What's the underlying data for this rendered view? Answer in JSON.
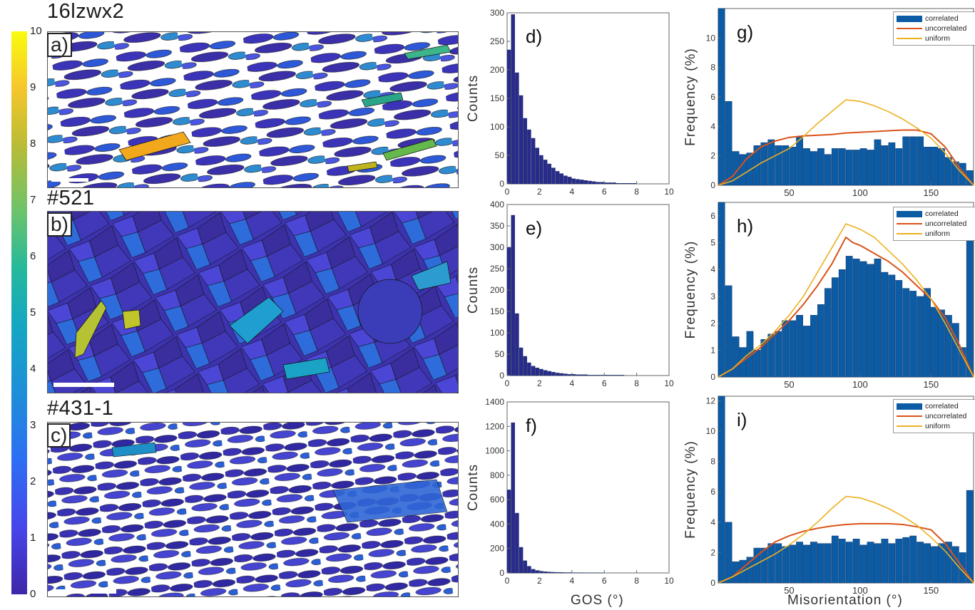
{
  "colorbar": {
    "ticks": [
      "0",
      "1",
      "2",
      "3",
      "4",
      "5",
      "6",
      "7",
      "8",
      "9",
      "10"
    ]
  },
  "maps": [
    {
      "sample": "16lzwx2",
      "label": "a)"
    },
    {
      "sample": "#521",
      "label": "b)"
    },
    {
      "sample": "#431-1",
      "label": "c)"
    }
  ],
  "colors": {
    "bars_gos": "#2a2a8c",
    "bars_mis": "#0c5ba5",
    "uncorrelated": "#d95319",
    "uniform": "#edb120",
    "map_dark": "#3b2fa8",
    "map_light": "#4a7ff0"
  },
  "gos_axis_label": "GOS (°)",
  "gos_ylabel": "Counts",
  "mis_axis_label": "Misorientation (°)",
  "mis_ylabel": "Frequency (%)",
  "legend": {
    "correlated": "correlated",
    "uncorrelated": "uncorrelated",
    "uniform": "uniform"
  },
  "chart_data": [
    {
      "id": "d",
      "label": "d)",
      "type": "bar",
      "x_centers": [
        0.125,
        0.375,
        0.625,
        0.875,
        1.125,
        1.375,
        1.625,
        1.875,
        2.125,
        2.375,
        2.625,
        2.875,
        3.125,
        3.375,
        3.625,
        3.875,
        4.125,
        4.375,
        4.625,
        4.875,
        5.125,
        5.375,
        5.625,
        5.875,
        6.125,
        6.375,
        6.625,
        6.875,
        7.125,
        7.375,
        7.625,
        7.875
      ],
      "values": [
        235,
        297,
        195,
        155,
        115,
        95,
        80,
        63,
        50,
        42,
        35,
        28,
        22,
        18,
        14,
        12,
        9,
        8,
        7,
        6,
        5,
        4,
        3,
        3,
        2,
        2,
        2,
        1,
        1,
        1,
        1,
        1
      ],
      "xlim": [
        0,
        10
      ],
      "ylim": [
        0,
        300
      ],
      "xticks": [
        "0",
        "2",
        "4",
        "6",
        "8",
        "10"
      ],
      "yticks": [
        "0",
        "50",
        "100",
        "150",
        "200",
        "250",
        "300"
      ]
    },
    {
      "id": "e",
      "label": "e)",
      "type": "bar",
      "x_centers": [
        0.125,
        0.375,
        0.625,
        0.875,
        1.125,
        1.375,
        1.625,
        1.875,
        2.125,
        2.375,
        2.625,
        2.875,
        3.125,
        3.375,
        3.625,
        3.875,
        4.125,
        4.375,
        4.625,
        4.875,
        5.125,
        5.375,
        5.625,
        5.875,
        6.125,
        6.375,
        6.625,
        6.875,
        7.125
      ],
      "values": [
        300,
        375,
        145,
        65,
        45,
        30,
        22,
        18,
        15,
        12,
        10,
        8,
        6,
        5,
        4,
        3,
        3,
        2,
        2,
        2,
        1,
        1,
        1,
        1,
        1,
        1,
        1,
        1,
        1
      ],
      "xlim": [
        0,
        10
      ],
      "ylim": [
        0,
        400
      ],
      "xticks": [
        "0",
        "2",
        "4",
        "6",
        "8",
        "10"
      ],
      "yticks": [
        "0",
        "50",
        "100",
        "150",
        "200",
        "250",
        "300",
        "350",
        "400"
      ]
    },
    {
      "id": "f",
      "label": "f)",
      "type": "bar",
      "x_centers": [
        0.125,
        0.375,
        0.625,
        0.875,
        1.125,
        1.375,
        1.625,
        1.875,
        2.125,
        2.375,
        2.625,
        2.875,
        3.125,
        3.375,
        3.625,
        3.875,
        4.125,
        4.375,
        4.625,
        4.875,
        5.125,
        5.375,
        5.625,
        5.875
      ],
      "values": [
        680,
        1230,
        490,
        210,
        100,
        55,
        30,
        20,
        14,
        10,
        8,
        6,
        5,
        4,
        3,
        3,
        2,
        2,
        2,
        1,
        1,
        1,
        1,
        1
      ],
      "xlim": [
        0,
        10
      ],
      "ylim": [
        0,
        1400
      ],
      "xticks": [
        "0",
        "2",
        "4",
        "6",
        "8",
        "10"
      ],
      "yticks": [
        "0",
        "200",
        "400",
        "600",
        "800",
        "1000",
        "1200",
        "1400"
      ]
    },
    {
      "id": "g",
      "label": "g)",
      "type": "bar",
      "x_centers": [
        2.5,
        7.5,
        12.5,
        17.5,
        22.5,
        27.5,
        32.5,
        37.5,
        42.5,
        47.5,
        52.5,
        57.5,
        62.5,
        67.5,
        72.5,
        77.5,
        82.5,
        87.5,
        92.5,
        97.5,
        102.5,
        107.5,
        112.5,
        117.5,
        122.5,
        127.5,
        132.5,
        137.5,
        142.5,
        147.5,
        152.5,
        157.5,
        162.5,
        167.5,
        172.5,
        177.5
      ],
      "values": [
        12,
        5.7,
        2.3,
        2.1,
        2.2,
        2.7,
        2.9,
        3.1,
        2.7,
        2.7,
        2.6,
        3.3,
        2.5,
        2.3,
        2.5,
        2.1,
        2.5,
        2.5,
        2.4,
        2.4,
        2.5,
        2.4,
        3.1,
        2.7,
        2.9,
        2.5,
        3.3,
        3.3,
        3.3,
        2.6,
        2.6,
        2.5,
        1.9,
        1.6,
        1.5,
        1.0
      ],
      "uncorrelated": {
        "x": [
          0,
          10,
          20,
          30,
          40,
          50,
          60,
          70,
          80,
          90,
          100,
          110,
          120,
          130,
          140,
          150,
          160,
          170,
          180
        ],
        "y": [
          0,
          0.6,
          1.8,
          2.6,
          3.0,
          3.25,
          3.35,
          3.4,
          3.45,
          3.55,
          3.6,
          3.65,
          3.7,
          3.75,
          3.75,
          3.5,
          2.6,
          1.2,
          0
        ]
      },
      "uniform": {
        "x": [
          0,
          10,
          20,
          30,
          40,
          50,
          60,
          70,
          80,
          90,
          100,
          110,
          120,
          130,
          140,
          150,
          160,
          170,
          180
        ],
        "y": [
          0,
          0.3,
          0.9,
          1.5,
          2.0,
          2.5,
          3.3,
          4.2,
          5.0,
          5.8,
          5.7,
          5.4,
          5.0,
          4.5,
          3.9,
          3.2,
          2.2,
          1.0,
          0
        ]
      },
      "xlim": [
        0,
        180
      ],
      "ylim": [
        0,
        12
      ],
      "xticks": [
        "50",
        "100",
        "150"
      ],
      "yticks": [
        "0",
        "2",
        "4",
        "6",
        "8",
        "10"
      ]
    },
    {
      "id": "h",
      "label": "h)",
      "type": "bar",
      "x_centers": [
        2.5,
        7.5,
        12.5,
        17.5,
        22.5,
        27.5,
        32.5,
        37.5,
        42.5,
        47.5,
        52.5,
        57.5,
        62.5,
        67.5,
        72.5,
        77.5,
        82.5,
        87.5,
        92.5,
        97.5,
        102.5,
        107.5,
        112.5,
        117.5,
        122.5,
        127.5,
        132.5,
        137.5,
        142.5,
        147.5,
        152.5,
        157.5,
        162.5,
        167.5,
        172.5,
        177.5
      ],
      "values": [
        6.5,
        3.4,
        1.5,
        1.1,
        1.7,
        1.0,
        1.4,
        1.6,
        1.7,
        2.1,
        2.1,
        2.3,
        1.9,
        2.3,
        2.7,
        3.3,
        3.7,
        4.0,
        4.5,
        4.4,
        4.3,
        4.2,
        4.4,
        3.9,
        3.8,
        3.6,
        3.3,
        3.2,
        3.0,
        3.3,
        2.6,
        2.5,
        2.3,
        2.0,
        1.1,
        5.6
      ],
      "uncorrelated": {
        "x": [
          0,
          10,
          20,
          30,
          40,
          50,
          60,
          70,
          80,
          90,
          95,
          100,
          110,
          120,
          130,
          140,
          150,
          160,
          170,
          180
        ],
        "y": [
          0,
          0.3,
          0.7,
          1.1,
          1.6,
          2.1,
          2.7,
          3.4,
          4.2,
          5.2,
          5.0,
          4.9,
          4.6,
          4.3,
          3.9,
          3.4,
          2.9,
          2.2,
          1.2,
          0
        ]
      },
      "uniform": {
        "x": [
          0,
          10,
          20,
          30,
          40,
          50,
          60,
          70,
          80,
          90,
          95,
          100,
          110,
          120,
          130,
          140,
          150,
          160,
          170,
          180
        ],
        "y": [
          0,
          0.3,
          0.8,
          1.2,
          1.7,
          2.3,
          3.0,
          3.9,
          4.8,
          5.7,
          5.6,
          5.5,
          5.2,
          4.7,
          4.2,
          3.6,
          2.9,
          2.0,
          1.0,
          0
        ]
      },
      "xlim": [
        0,
        180
      ],
      "ylim": [
        0,
        6.5
      ],
      "xticks": [
        "50",
        "100",
        "150"
      ],
      "yticks": [
        "0",
        "1",
        "2",
        "3",
        "4",
        "5",
        "6"
      ]
    },
    {
      "id": "i",
      "label": "i)",
      "type": "bar",
      "x_centers": [
        2.5,
        7.5,
        12.5,
        17.5,
        22.5,
        27.5,
        32.5,
        37.5,
        42.5,
        47.5,
        52.5,
        57.5,
        62.5,
        67.5,
        72.5,
        77.5,
        82.5,
        87.5,
        92.5,
        97.5,
        102.5,
        107.5,
        112.5,
        117.5,
        122.5,
        127.5,
        132.5,
        137.5,
        142.5,
        147.5,
        152.5,
        157.5,
        162.5,
        167.5,
        172.5,
        177.5
      ],
      "values": [
        12.3,
        4.0,
        1.4,
        1.5,
        1.7,
        2.3,
        2.3,
        2.6,
        2.6,
        2.4,
        2.5,
        2.7,
        2.5,
        2.7,
        2.6,
        2.6,
        3.1,
        2.9,
        2.7,
        2.9,
        2.5,
        2.7,
        2.6,
        2.9,
        2.6,
        2.9,
        3.0,
        3.1,
        2.7,
        2.6,
        2.4,
        2.6,
        2.7,
        2.4,
        2.0,
        6.1
      ],
      "uncorrelated": {
        "x": [
          0,
          10,
          20,
          30,
          40,
          50,
          60,
          70,
          80,
          90,
          100,
          110,
          120,
          130,
          140,
          150,
          160,
          170,
          180
        ],
        "y": [
          0,
          0.4,
          1.2,
          2.0,
          2.7,
          3.1,
          3.4,
          3.6,
          3.75,
          3.85,
          3.9,
          3.9,
          3.9,
          3.85,
          3.7,
          3.5,
          2.6,
          1.3,
          0
        ]
      },
      "uniform": {
        "x": [
          0,
          10,
          20,
          30,
          40,
          50,
          60,
          70,
          80,
          90,
          100,
          110,
          120,
          130,
          140,
          150,
          160,
          170,
          180
        ],
        "y": [
          0,
          0.4,
          0.9,
          1.4,
          1.9,
          2.5,
          3.2,
          4.0,
          4.9,
          5.7,
          5.6,
          5.3,
          4.9,
          4.4,
          3.8,
          3.0,
          2.1,
          1.0,
          0
        ]
      },
      "xlim": [
        0,
        180
      ],
      "ylim": [
        0,
        12.3
      ],
      "xticks": [
        "50",
        "100",
        "150"
      ],
      "yticks": [
        "0",
        "2",
        "4",
        "6",
        "8",
        "10",
        "12"
      ]
    }
  ]
}
